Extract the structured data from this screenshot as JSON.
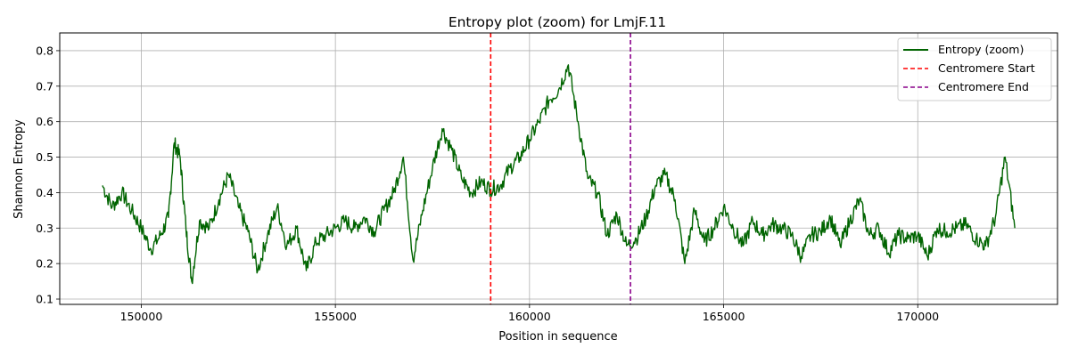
{
  "chart_data": {
    "type": "line",
    "title": "Entropy plot (zoom) for LmjF.11",
    "xlabel": "Position in sequence",
    "ylabel": "Shannon Entropy",
    "xlim": [
      147900,
      173600
    ],
    "ylim": [
      0.085,
      0.85
    ],
    "xticks": [
      150000,
      155000,
      160000,
      165000,
      170000
    ],
    "yticks": [
      0.1,
      0.2,
      0.3,
      0.4,
      0.5,
      0.6,
      0.7,
      0.8
    ],
    "grid": true,
    "legend_position": "top-right",
    "series": [
      {
        "name": "Entropy (zoom)",
        "color": "#006400",
        "style": "solid",
        "x": [
          149000,
          149250,
          149500,
          149750,
          150000,
          150250,
          150500,
          150700,
          150850,
          151000,
          151150,
          151300,
          151500,
          151750,
          152000,
          152250,
          152500,
          152750,
          153000,
          153250,
          153500,
          153750,
          154000,
          154250,
          154500,
          154750,
          155000,
          155250,
          155500,
          155750,
          156000,
          156250,
          156500,
          156750,
          157000,
          157250,
          157500,
          157750,
          158000,
          158250,
          158500,
          158750,
          159000,
          159250,
          159500,
          159750,
          160000,
          160250,
          160500,
          160750,
          161000,
          161250,
          161500,
          161750,
          162000,
          162250,
          162500,
          162750,
          163000,
          163250,
          163500,
          163750,
          164000,
          164250,
          164500,
          164750,
          165000,
          165250,
          165500,
          165750,
          166000,
          166250,
          166500,
          166750,
          167000,
          167250,
          167500,
          167750,
          168000,
          168250,
          168500,
          168750,
          169000,
          169250,
          169500,
          169750,
          170000,
          170250,
          170500,
          170750,
          171000,
          171250,
          171500,
          171750,
          172000,
          172250,
          172500
        ],
        "y": [
          0.42,
          0.36,
          0.4,
          0.35,
          0.3,
          0.24,
          0.28,
          0.33,
          0.54,
          0.5,
          0.3,
          0.15,
          0.32,
          0.3,
          0.38,
          0.45,
          0.36,
          0.29,
          0.18,
          0.28,
          0.36,
          0.25,
          0.3,
          0.18,
          0.26,
          0.28,
          0.3,
          0.32,
          0.3,
          0.33,
          0.29,
          0.35,
          0.4,
          0.5,
          0.21,
          0.35,
          0.47,
          0.58,
          0.52,
          0.44,
          0.4,
          0.43,
          0.41,
          0.42,
          0.47,
          0.5,
          0.55,
          0.6,
          0.66,
          0.69,
          0.76,
          0.6,
          0.44,
          0.4,
          0.28,
          0.34,
          0.25,
          0.27,
          0.33,
          0.42,
          0.45,
          0.38,
          0.2,
          0.35,
          0.26,
          0.3,
          0.36,
          0.3,
          0.25,
          0.32,
          0.28,
          0.31,
          0.3,
          0.28,
          0.22,
          0.28,
          0.29,
          0.33,
          0.25,
          0.32,
          0.38,
          0.28,
          0.3,
          0.23,
          0.28,
          0.27,
          0.28,
          0.22,
          0.3,
          0.29,
          0.3,
          0.31,
          0.27,
          0.25,
          0.33,
          0.5,
          0.3
        ]
      }
    ],
    "vlines": [
      {
        "name": "Centromere Start",
        "x": 159000,
        "color": "#ff0000",
        "style": "dashed"
      },
      {
        "name": "Centromere End",
        "x": 162600,
        "color": "#8b008b",
        "style": "dashed"
      }
    ]
  }
}
